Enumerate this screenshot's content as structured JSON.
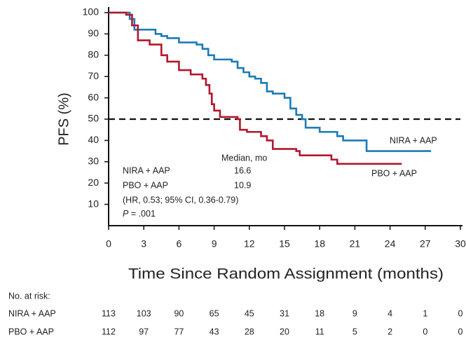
{
  "chart_data": {
    "type": "line",
    "step": "post",
    "ylabel": "PFS (%)",
    "xlabel": "Time Since Random Assignment (months)",
    "xlim": [
      0,
      30
    ],
    "ylim": [
      0,
      100
    ],
    "xticks": [
      0,
      3,
      6,
      9,
      12,
      15,
      18,
      21,
      24,
      27,
      30
    ],
    "yticks": [
      10,
      20,
      30,
      40,
      50,
      60,
      70,
      80,
      90,
      100
    ],
    "reference_line": 50,
    "series": [
      {
        "name": "NIRA + AAP",
        "color": "#1d7bb4",
        "x": [
          0,
          1.8,
          2.2,
          4,
          4.5,
          5,
          6,
          7.5,
          8,
          8.5,
          9,
          10.5,
          11,
          11.5,
          12,
          12.5,
          13,
          13.5,
          14,
          15,
          15.5,
          16,
          16.5,
          16.8,
          18,
          19.5,
          20,
          22,
          27.5
        ],
        "values": [
          100,
          97,
          92,
          90,
          89,
          88,
          86,
          85,
          83,
          80,
          78,
          77,
          74,
          72,
          70,
          69,
          67,
          63,
          62,
          60,
          55,
          52,
          50,
          46,
          44,
          42,
          40,
          35,
          35
        ]
      },
      {
        "name": "PBO + AAP",
        "color": "#b3172c",
        "x": [
          0,
          1.5,
          2,
          2.5,
          3.5,
          4.5,
          5,
          6,
          7,
          8,
          8.3,
          8.6,
          8.8,
          9,
          9.5,
          11,
          11.2,
          11.8,
          13,
          13.5,
          14,
          16,
          16.3,
          19,
          19.5,
          25
        ],
        "values": [
          100,
          99,
          94,
          87,
          85,
          80,
          77,
          73,
          71,
          69,
          66,
          62,
          57,
          54,
          51,
          50,
          45,
          44,
          42,
          40,
          36,
          35,
          33,
          31,
          29,
          29
        ]
      }
    ],
    "annotations": {
      "median_header": "Median, mo",
      "rows": [
        {
          "label": "NIRA + AAP",
          "value": "16.6"
        },
        {
          "label": "PBO + AAP",
          "value": "10.9"
        }
      ],
      "hr": "(HR, 0.53; 95% CI, 0.36-0.79)",
      "p_symbol": "P",
      "p_value": " = .001"
    },
    "risk_table": {
      "title": "No. at risk:",
      "rows": [
        {
          "label": "NIRA + AAP",
          "counts": [
            113,
            103,
            90,
            65,
            45,
            31,
            18,
            9,
            4,
            1,
            0
          ]
        },
        {
          "label": "PBO + AAP",
          "counts": [
            112,
            97,
            77,
            43,
            28,
            20,
            11,
            5,
            2,
            0,
            0
          ]
        }
      ]
    }
  }
}
